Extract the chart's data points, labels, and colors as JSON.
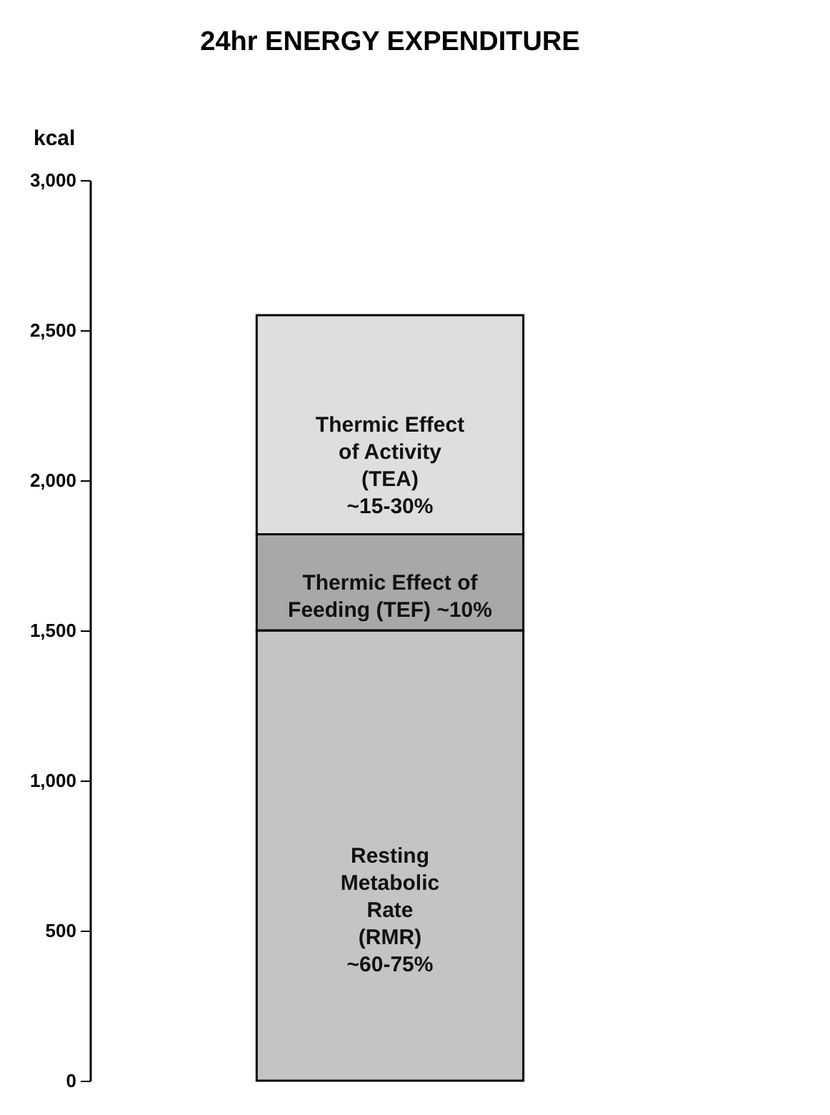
{
  "chart_data": {
    "type": "bar",
    "title": "24hr ENERGY EXPENDITURE",
    "ylabel": "kcal",
    "stacked": true,
    "categories": [
      null
    ],
    "series": [
      {
        "name": "Resting\nMetabolic\nRate\n(RMR)\n~60-75%",
        "color": "#c4c4c4",
        "values": [
          1500
        ]
      },
      {
        "name": "Thermic Effect of\nFeeding (TEF) ~10%",
        "color": "#a8a8a8",
        "values": [
          320
        ]
      },
      {
        "name": "Thermic Effect\nof Activity\n(TEA)\n~15-30%",
        "color": "#dedede",
        "values": [
          730
        ]
      }
    ],
    "ylim": [
      0,
      3000
    ],
    "yticks": [
      0,
      500,
      {
        "value": 1000,
        "label": "1,000"
      },
      {
        "value": 1500,
        "label": "1,500"
      },
      {
        "value": 2000,
        "label": "2,000"
      },
      {
        "value": 2500,
        "label": "2,500"
      },
      {
        "value": 3000,
        "label": "3,000"
      }
    ],
    "grid": false,
    "legend": false
  }
}
